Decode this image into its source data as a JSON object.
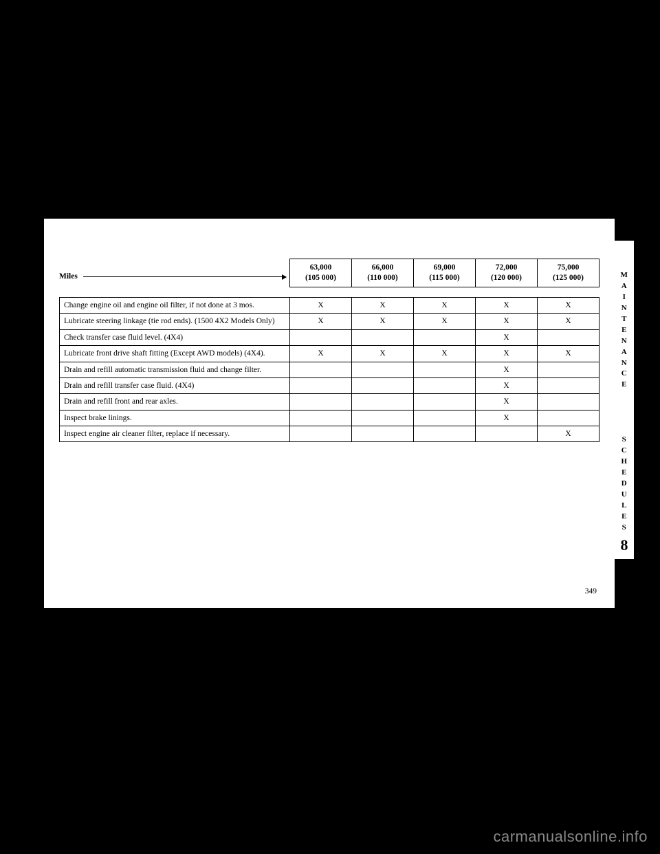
{
  "side_tab": {
    "line1": "MAINTENANCE",
    "gap": " ",
    "line2": "SCHEDULES",
    "num": "8"
  },
  "miles_row": {
    "label": "Miles",
    "cells": [
      "63,000\n(105 000)",
      "66,000\n(110 000)",
      "69,000\n(115 000)",
      "72,000\n(120 000)",
      "75,000\n(125 000)"
    ]
  },
  "rows": [
    {
      "desc": "Change engine oil and engine oil filter, if not done at 3 mos.",
      "cells": [
        "X",
        "X",
        "X",
        "X",
        "X"
      ]
    },
    {
      "desc": "Lubricate steering linkage (tie rod ends). (1500 4X2 Models Only)",
      "cells": [
        "X",
        "X",
        "X",
        "X",
        "X"
      ]
    },
    {
      "desc": "Check transfer case fluid level. (4X4)",
      "cells": [
        "",
        "",
        "",
        "X",
        ""
      ]
    },
    {
      "desc": "Lubricate front drive shaft fitting (Except AWD models) (4X4).",
      "cells": [
        "X",
        "X",
        "X",
        "X",
        "X"
      ]
    },
    {
      "desc": "Drain and refill automatic transmission fluid and change filter.",
      "cells": [
        "",
        "",
        "",
        "X",
        ""
      ]
    },
    {
      "desc": "Drain and refill transfer case fluid. (4X4)",
      "cells": [
        "",
        "",
        "",
        "X",
        ""
      ]
    },
    {
      "desc": "Drain and refill front and rear axles.",
      "cells": [
        "",
        "",
        "",
        "X",
        ""
      ]
    },
    {
      "desc": "Inspect brake linings.",
      "cells": [
        "",
        "",
        "",
        "X",
        ""
      ]
    },
    {
      "desc": "Inspect engine air cleaner filter, replace if necessary.",
      "cells": [
        "",
        "",
        "",
        "",
        "X"
      ]
    }
  ],
  "page_number": "349",
  "watermark": "carmanualsonline.info"
}
